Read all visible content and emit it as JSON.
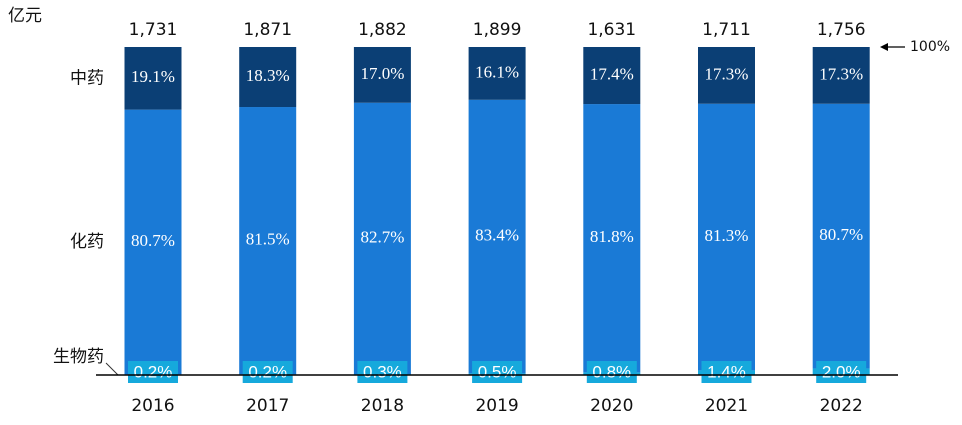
{
  "chart_data": {
    "type": "stacked-bar-percent",
    "y_unit": "亿元",
    "categories": [
      "2016",
      "2017",
      "2018",
      "2019",
      "2020",
      "2021",
      "2022"
    ],
    "totals": [
      {
        "value": 1731,
        "label": "1,731"
      },
      {
        "value": 1871,
        "label": "1,871"
      },
      {
        "value": 1882,
        "label": "1,882"
      },
      {
        "value": 1899,
        "label": "1,899"
      },
      {
        "value": 1631,
        "label": "1,631"
      },
      {
        "value": 1711,
        "label": "1,711"
      },
      {
        "value": 1756,
        "label": "1,756"
      }
    ],
    "series": [
      {
        "name": "生物药",
        "color": "#16a9dc",
        "values": [
          0.2,
          0.2,
          0.3,
          0.5,
          0.8,
          1.4,
          2.0
        ],
        "value_labels": [
          "0.2%",
          "0.2%",
          "0.3%",
          "0.5%",
          "0.8%",
          "1.4%",
          "2.0%"
        ]
      },
      {
        "name": "化药",
        "color": "#1a7ad6",
        "values": [
          80.7,
          81.5,
          82.7,
          83.4,
          81.8,
          81.3,
          80.7
        ],
        "value_labels": [
          "80.7%",
          "81.5%",
          "82.7%",
          "83.4%",
          "81.8%",
          "81.3%",
          "80.7%"
        ]
      },
      {
        "name": "中药",
        "color": "#0b3f75",
        "values": [
          19.1,
          18.3,
          17.0,
          16.1,
          17.4,
          17.3,
          17.3
        ],
        "value_labels": [
          "19.1%",
          "18.3%",
          "17.0%",
          "16.1%",
          "17.4%",
          "17.3%",
          "17.3%"
        ]
      }
    ],
    "ylim": [
      0,
      100
    ],
    "yticks": [
      {
        "value": 100,
        "label": "100%"
      }
    ]
  }
}
